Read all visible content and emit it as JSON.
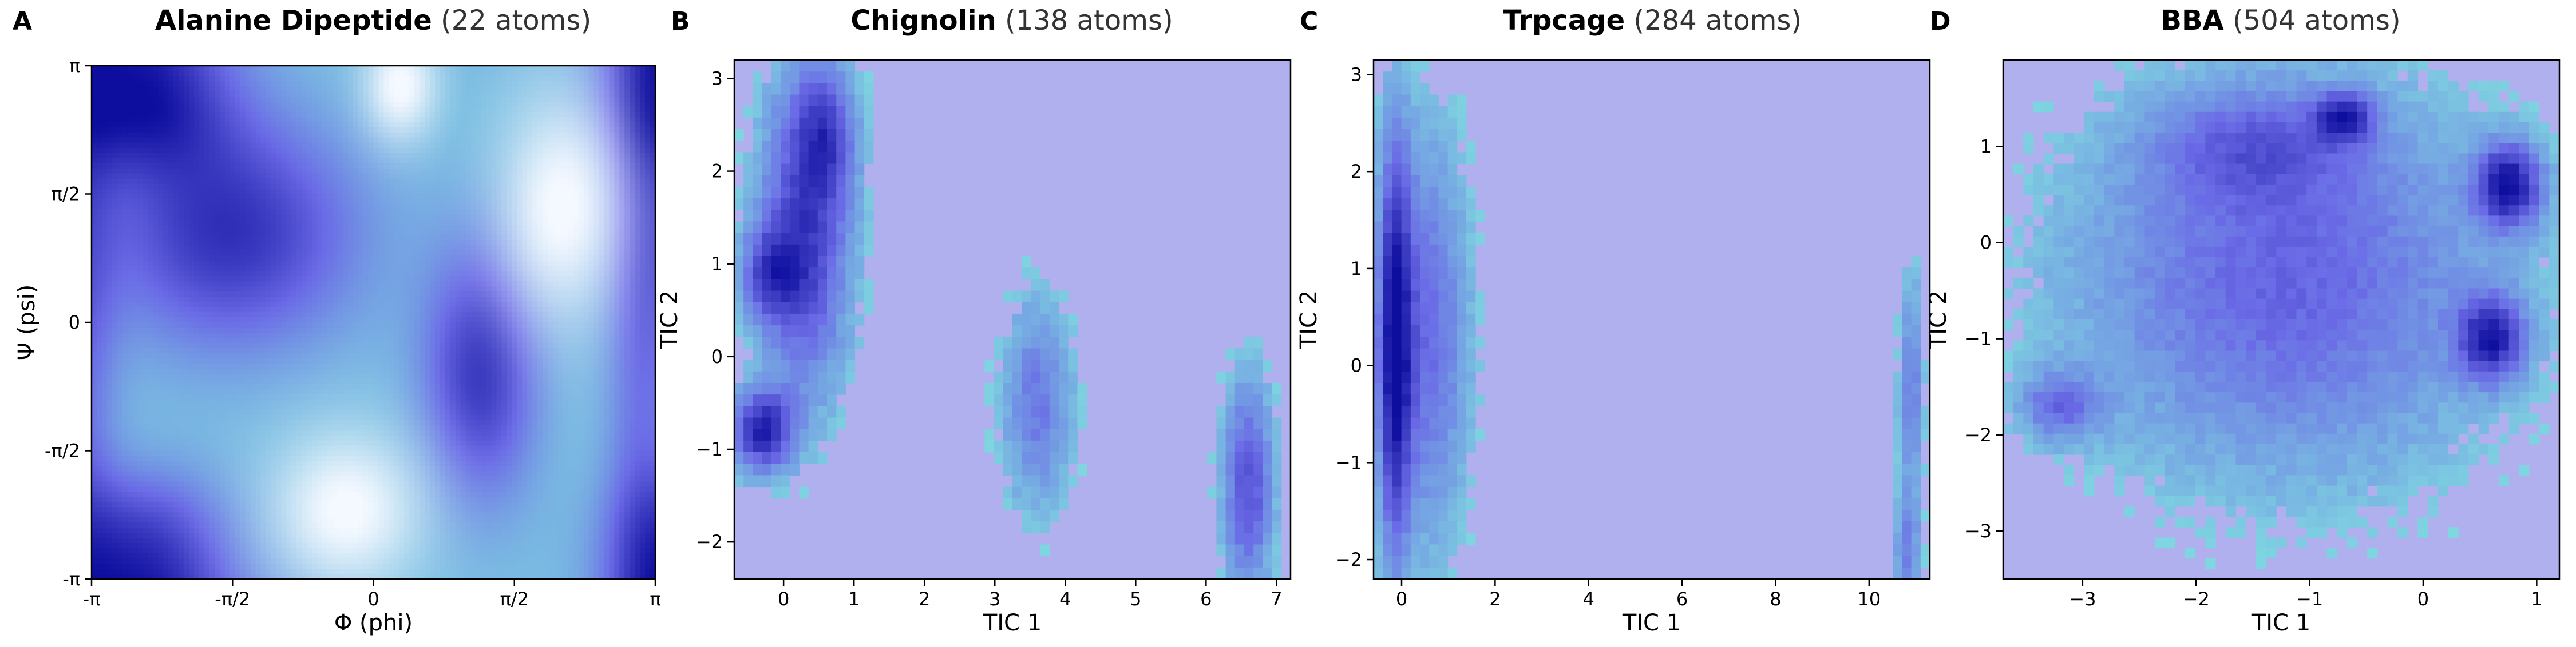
{
  "chart_data": [
    {
      "type": "heatmap",
      "panel_letter": "A",
      "title_bold": "Alanine Dipeptide",
      "title_rest": " (22 atoms)",
      "xlabel": "Φ (phi)",
      "ylabel": "Ψ (psi)",
      "xlim": [
        -3.14159,
        3.14159
      ],
      "ylim": [
        -3.14159,
        3.14159
      ],
      "xticks": [
        {
          "value": -3.14159,
          "label": "-π"
        },
        {
          "value": -1.5708,
          "label": "-π/2"
        },
        {
          "value": 0,
          "label": "0"
        },
        {
          "value": 1.5708,
          "label": "π/2"
        },
        {
          "value": 3.14159,
          "label": "π"
        }
      ],
      "yticks": [
        {
          "value": -3.14159,
          "label": "-π"
        },
        {
          "value": -1.5708,
          "label": "-π/2"
        },
        {
          "value": 0,
          "label": "0"
        },
        {
          "value": 1.5708,
          "label": "π/2"
        },
        {
          "value": 3.14159,
          "label": "π"
        }
      ],
      "density_peaks": [
        {
          "x": -1.6,
          "y": 1.1,
          "intensity": 1.0,
          "sx": 1.0,
          "sy": 1.0
        },
        {
          "x": -2.6,
          "y": 2.6,
          "intensity": 0.9,
          "sx": 0.7,
          "sy": 0.6
        },
        {
          "x": 1.2,
          "y": -0.6,
          "intensity": 0.95,
          "sx": 0.45,
          "sy": 1.1
        },
        {
          "x": -2.6,
          "y": -2.6,
          "intensity": 0.75,
          "sx": 0.7,
          "sy": 0.6
        },
        {
          "x": 3.0,
          "y": 0.5,
          "intensity": 0.5,
          "sx": 0.3,
          "sy": 2.5
        }
      ],
      "bright_regions": [
        {
          "x": 2.1,
          "y": 1.4,
          "sx": 0.5,
          "sy": 1.0
        },
        {
          "x": -0.3,
          "y": -2.3,
          "sx": 0.6,
          "sy": 0.7
        },
        {
          "x": 0.3,
          "y": 2.9,
          "sx": 0.3,
          "sy": 0.5
        }
      ]
    },
    {
      "type": "heatmap",
      "panel_letter": "B",
      "title_bold": "Chignolin",
      "title_rest": " (138 atoms)",
      "xlabel": "TIC 1",
      "ylabel": "TIC 2",
      "xlim": [
        -0.7,
        7.2
      ],
      "ylim": [
        -2.4,
        3.2
      ],
      "xticks": [
        {
          "value": 0,
          "label": "0"
        },
        {
          "value": 1,
          "label": "1"
        },
        {
          "value": 2,
          "label": "2"
        },
        {
          "value": 3,
          "label": "3"
        },
        {
          "value": 4,
          "label": "4"
        },
        {
          "value": 5,
          "label": "5"
        },
        {
          "value": 6,
          "label": "6"
        },
        {
          "value": 7,
          "label": "7"
        }
      ],
      "yticks": [
        {
          "value": -2,
          "label": "−2"
        },
        {
          "value": -1,
          "label": "−1"
        },
        {
          "value": 0,
          "label": "0"
        },
        {
          "value": 1,
          "label": "1"
        },
        {
          "value": 2,
          "label": "2"
        },
        {
          "value": 3,
          "label": "3"
        }
      ],
      "bins": [
        60,
        45
      ],
      "clusters": [
        {
          "x": 0.3,
          "y": 1.3,
          "sx": 0.45,
          "sy": 1.2,
          "w": 0.75
        },
        {
          "x": -0.2,
          "y": 0.9,
          "sx": 0.3,
          "sy": 0.35,
          "w": 0.55
        },
        {
          "x": -0.3,
          "y": -0.8,
          "sx": 0.3,
          "sy": 0.3,
          "w": 0.9
        },
        {
          "x": 0.6,
          "y": 2.4,
          "sx": 0.3,
          "sy": 0.5,
          "w": 0.5
        },
        {
          "x": 3.6,
          "y": -0.5,
          "sx": 0.35,
          "sy": 0.8,
          "w": 0.45
        },
        {
          "x": 6.6,
          "y": -1.4,
          "sx": 0.25,
          "sy": 0.8,
          "w": 0.65
        }
      ]
    },
    {
      "type": "heatmap",
      "panel_letter": "C",
      "title_bold": "Trpcage",
      "title_rest": " (284 atoms)",
      "xlabel": "TIC 1",
      "ylabel": "TIC 2",
      "xlim": [
        -0.6,
        11.3
      ],
      "ylim": [
        -2.2,
        3.15
      ],
      "xticks": [
        {
          "value": 0,
          "label": "0"
        },
        {
          "value": 2,
          "label": "2"
        },
        {
          "value": 4,
          "label": "4"
        },
        {
          "value": 6,
          "label": "6"
        },
        {
          "value": 8,
          "label": "8"
        },
        {
          "value": 10,
          "label": "10"
        }
      ],
      "yticks": [
        {
          "value": -2,
          "label": "−2"
        },
        {
          "value": -1,
          "label": "−1"
        },
        {
          "value": 0,
          "label": "0"
        },
        {
          "value": 1,
          "label": "1"
        },
        {
          "value": 2,
          "label": "2"
        },
        {
          "value": 3,
          "label": "3"
        }
      ],
      "bins": [
        60,
        45
      ],
      "clusters": [
        {
          "x": -0.15,
          "y": 0.2,
          "sx": 0.25,
          "sy": 1.4,
          "w": 1.0
        },
        {
          "x": 0.6,
          "y": 0.3,
          "sx": 0.6,
          "sy": 1.5,
          "w": 0.5
        },
        {
          "x": 10.9,
          "y": -0.3,
          "sx": 0.2,
          "sy": 0.9,
          "w": 0.4
        },
        {
          "x": 10.8,
          "y": -1.9,
          "sx": 0.2,
          "sy": 0.35,
          "w": 0.35
        }
      ]
    },
    {
      "type": "heatmap",
      "panel_letter": "D",
      "title_bold": "BBA",
      "title_rest": " (504 atoms)",
      "xlabel": "TIC 1",
      "ylabel": "TIC 2",
      "xlim": [
        -3.7,
        1.2
      ],
      "ylim": [
        -3.5,
        1.9
      ],
      "xticks": [
        {
          "value": -3,
          "label": "−3"
        },
        {
          "value": -2,
          "label": "−2"
        },
        {
          "value": -1,
          "label": "−1"
        },
        {
          "value": 0,
          "label": "0"
        },
        {
          "value": 1,
          "label": "1"
        }
      ],
      "yticks": [
        {
          "value": -3,
          "label": "−3"
        },
        {
          "value": -2,
          "label": "−2"
        },
        {
          "value": -1,
          "label": "−1"
        },
        {
          "value": 0,
          "label": "0"
        },
        {
          "value": 1,
          "label": "1"
        }
      ],
      "bins": [
        55,
        50
      ],
      "clusters": [
        {
          "x": -1.2,
          "y": -0.4,
          "sx": 1.3,
          "sy": 1.4,
          "w": 0.55
        },
        {
          "x": 0.75,
          "y": 0.6,
          "sx": 0.2,
          "sy": 0.3,
          "w": 0.95
        },
        {
          "x": 0.6,
          "y": -1.0,
          "sx": 0.2,
          "sy": 0.3,
          "w": 0.85
        },
        {
          "x": -0.7,
          "y": 1.3,
          "sx": 0.18,
          "sy": 0.18,
          "w": 0.7
        },
        {
          "x": -1.5,
          "y": 1.0,
          "sx": 0.6,
          "sy": 0.4,
          "w": 0.35
        },
        {
          "x": -3.2,
          "y": -1.7,
          "sx": 0.25,
          "sy": 0.25,
          "w": 0.45
        }
      ]
    }
  ],
  "colors": {
    "empty_background": "#b0b0ee",
    "cmap_low": "#7fd7e0",
    "cmap_mid": "#6a6ae6",
    "cmap_high": "#0d0d9e",
    "bright": "#f4f8ff"
  }
}
